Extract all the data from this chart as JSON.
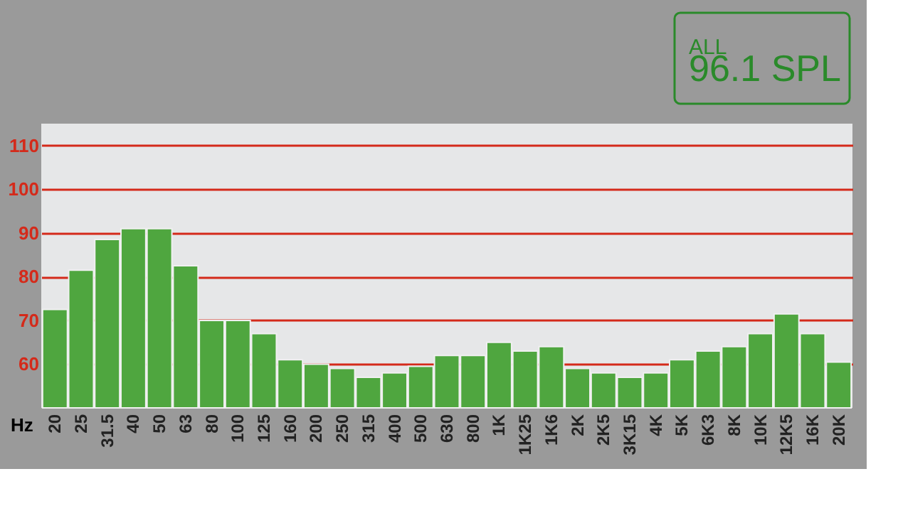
{
  "chart_data": {
    "type": "bar",
    "xlabel": "Hz",
    "categories": [
      "20",
      "25",
      "31.5",
      "40",
      "50",
      "63",
      "80",
      "100",
      "125",
      "160",
      "200",
      "250",
      "315",
      "400",
      "500",
      "630",
      "800",
      "1K",
      "1K25",
      "1K6",
      "2K",
      "2K5",
      "3K15",
      "4K",
      "5K",
      "6K3",
      "8K",
      "10K",
      "12K5",
      "16K",
      "20K"
    ],
    "values": [
      72.5,
      81.5,
      88.5,
      91,
      91,
      82.5,
      70,
      70,
      67,
      61,
      60,
      59,
      57,
      58,
      59.5,
      62,
      62,
      65,
      63,
      64,
      59,
      58,
      57,
      58,
      61,
      63,
      64,
      67,
      71.5,
      67,
      60.5
    ],
    "color": "#4fa63f",
    "ylim": [
      50,
      115
    ],
    "yticks": [
      60,
      70,
      80,
      90,
      100,
      110
    ],
    "grid": "y",
    "annotations": [
      "ALL",
      "96.1 SPL"
    ]
  }
}
